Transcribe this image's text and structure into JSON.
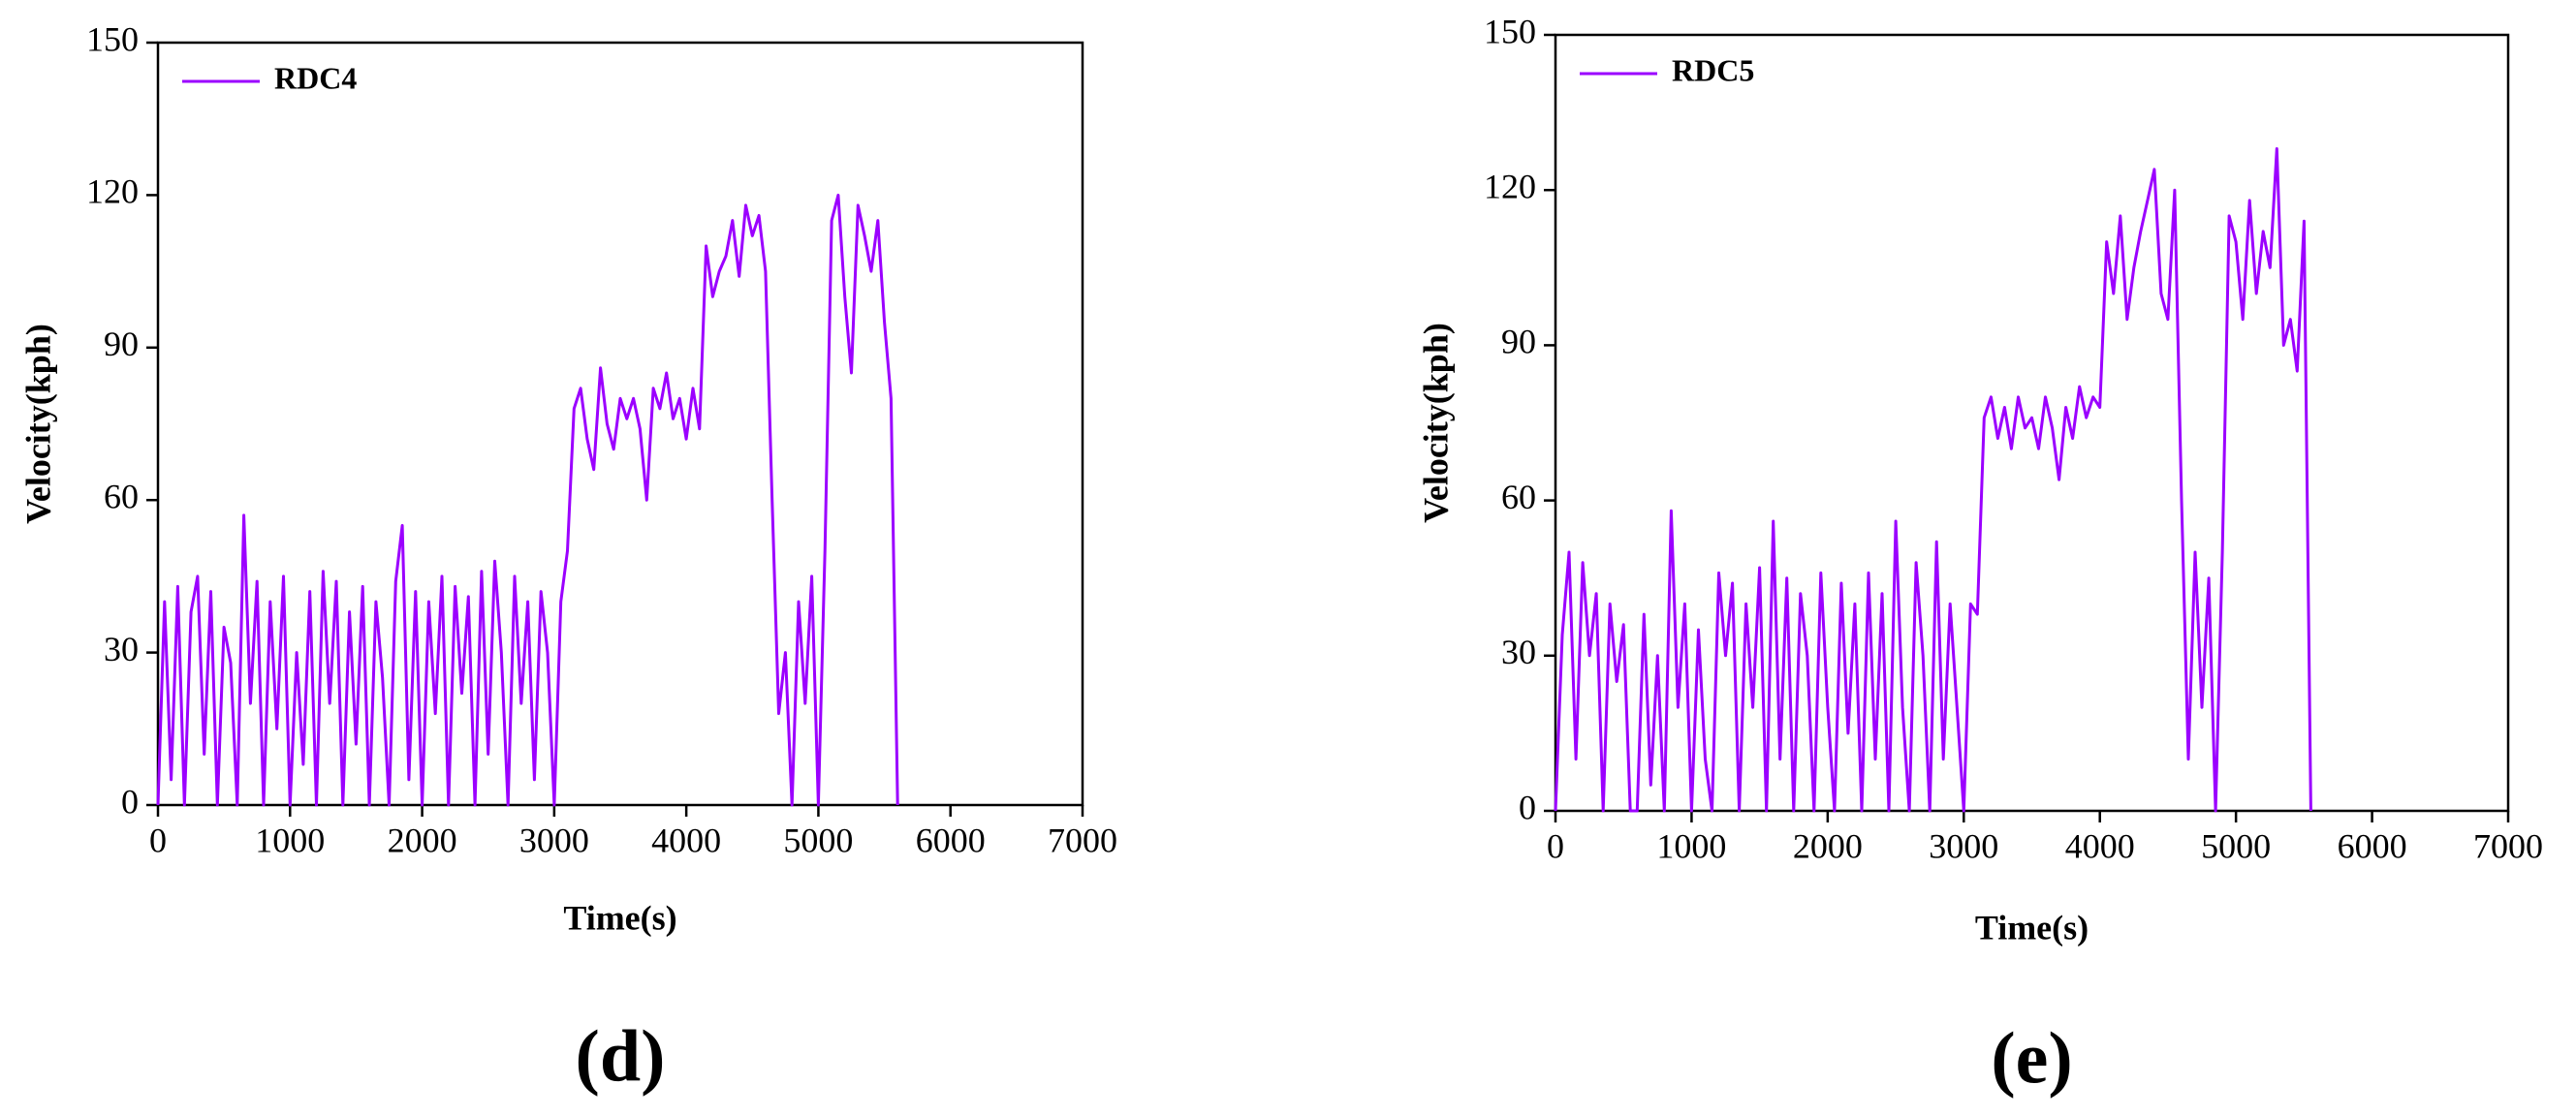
{
  "chart_data": [
    {
      "type": "line",
      "panel_label": "(d)",
      "xlabel": "Time(s)",
      "ylabel": "Velocity(kph)",
      "xlim": [
        0,
        7000
      ],
      "ylim": [
        0,
        150
      ],
      "xticks": [
        0,
        1000,
        2000,
        3000,
        4000,
        5000,
        6000,
        7000
      ],
      "yticks": [
        0,
        30,
        60,
        90,
        120,
        150
      ],
      "legend": "upper left",
      "x": [
        0,
        50,
        100,
        150,
        200,
        250,
        300,
        350,
        400,
        450,
        500,
        550,
        600,
        650,
        700,
        750,
        800,
        850,
        900,
        950,
        1000,
        1050,
        1100,
        1150,
        1200,
        1250,
        1300,
        1350,
        1400,
        1450,
        1500,
        1550,
        1600,
        1650,
        1700,
        1750,
        1800,
        1850,
        1900,
        1950,
        2000,
        2050,
        2100,
        2150,
        2200,
        2250,
        2300,
        2350,
        2400,
        2450,
        2500,
        2550,
        2600,
        2650,
        2700,
        2750,
        2800,
        2850,
        2900,
        2950,
        3000,
        3050,
        3100,
        3150,
        3200,
        3250,
        3300,
        3350,
        3400,
        3450,
        3500,
        3550,
        3600,
        3650,
        3700,
        3750,
        3800,
        3850,
        3900,
        3950,
        4000,
        4050,
        4100,
        4150,
        4200,
        4250,
        4300,
        4350,
        4400,
        4450,
        4500,
        4550,
        4600,
        4650,
        4700,
        4750,
        4800,
        4850,
        4900,
        4950,
        5000,
        5050,
        5100,
        5150,
        5200,
        5250,
        5300,
        5350,
        5400,
        5450,
        5500,
        5550,
        5600
      ],
      "series": [
        {
          "name": "RDC4",
          "color": "#9b00ff",
          "values": [
            0,
            40,
            5,
            43,
            0,
            38,
            45,
            10,
            42,
            0,
            35,
            28,
            0,
            57,
            20,
            44,
            0,
            40,
            15,
            45,
            0,
            30,
            8,
            42,
            0,
            46,
            20,
            44,
            0,
            38,
            12,
            43,
            0,
            40,
            25,
            0,
            44,
            55,
            5,
            42,
            0,
            40,
            18,
            45,
            0,
            43,
            22,
            41,
            0,
            46,
            10,
            48,
            30,
            0,
            45,
            20,
            40,
            5,
            42,
            30,
            0,
            40,
            50,
            78,
            82,
            72,
            66,
            86,
            75,
            70,
            80,
            76,
            80,
            74,
            60,
            82,
            78,
            85,
            76,
            80,
            72,
            82,
            74,
            110,
            100,
            105,
            108,
            115,
            104,
            118,
            112,
            116,
            105,
            60,
            18,
            30,
            0,
            40,
            20,
            45,
            0,
            50,
            115,
            120,
            100,
            85,
            118,
            112,
            105,
            115,
            95,
            80,
            0
          ]
        }
      ]
    },
    {
      "type": "line",
      "panel_label": "(e)",
      "xlabel": "Time(s)",
      "ylabel": "Velocity(kph)",
      "xlim": [
        0,
        7000
      ],
      "ylim": [
        0,
        150
      ],
      "xticks": [
        0,
        1000,
        2000,
        3000,
        4000,
        5000,
        6000,
        7000
      ],
      "yticks": [
        0,
        30,
        60,
        90,
        120,
        150
      ],
      "legend": "upper left",
      "x": [
        0,
        50,
        100,
        150,
        200,
        250,
        300,
        350,
        400,
        450,
        500,
        550,
        600,
        650,
        700,
        750,
        800,
        850,
        900,
        950,
        1000,
        1050,
        1100,
        1150,
        1200,
        1250,
        1300,
        1350,
        1400,
        1450,
        1500,
        1550,
        1600,
        1650,
        1700,
        1750,
        1800,
        1850,
        1900,
        1950,
        2000,
        2050,
        2100,
        2150,
        2200,
        2250,
        2300,
        2350,
        2400,
        2450,
        2500,
        2550,
        2600,
        2650,
        2700,
        2750,
        2800,
        2850,
        2900,
        2950,
        3000,
        3050,
        3100,
        3150,
        3200,
        3250,
        3300,
        3350,
        3400,
        3450,
        3500,
        3550,
        3600,
        3650,
        3700,
        3750,
        3800,
        3850,
        3900,
        3950,
        4000,
        4050,
        4100,
        4150,
        4200,
        4250,
        4300,
        4350,
        4400,
        4450,
        4500,
        4550,
        4600,
        4650,
        4700,
        4750,
        4800,
        4850,
        4900,
        4950,
        5000,
        5050,
        5100,
        5150,
        5200,
        5250,
        5300,
        5350,
        5400,
        5450,
        5500,
        5550
      ],
      "series": [
        {
          "name": "RDC5",
          "color": "#9b00ff",
          "values": [
            0,
            34,
            50,
            10,
            48,
            30,
            42,
            0,
            40,
            25,
            36,
            0,
            0,
            38,
            5,
            30,
            0,
            58,
            20,
            40,
            0,
            35,
            10,
            0,
            46,
            30,
            44,
            0,
            40,
            20,
            47,
            0,
            56,
            10,
            45,
            0,
            42,
            30,
            0,
            46,
            20,
            0,
            44,
            15,
            40,
            0,
            46,
            10,
            42,
            0,
            56,
            20,
            0,
            48,
            30,
            0,
            52,
            10,
            40,
            20,
            0,
            40,
            38,
            76,
            80,
            72,
            78,
            70,
            80,
            74,
            76,
            70,
            80,
            74,
            64,
            78,
            72,
            82,
            76,
            80,
            78,
            110,
            100,
            115,
            95,
            105,
            112,
            118,
            124,
            100,
            95,
            120,
            60,
            10,
            50,
            20,
            45,
            0,
            50,
            115,
            110,
            95,
            118,
            100,
            112,
            105,
            128,
            90,
            95,
            85,
            114,
            0
          ]
        }
      ]
    }
  ]
}
